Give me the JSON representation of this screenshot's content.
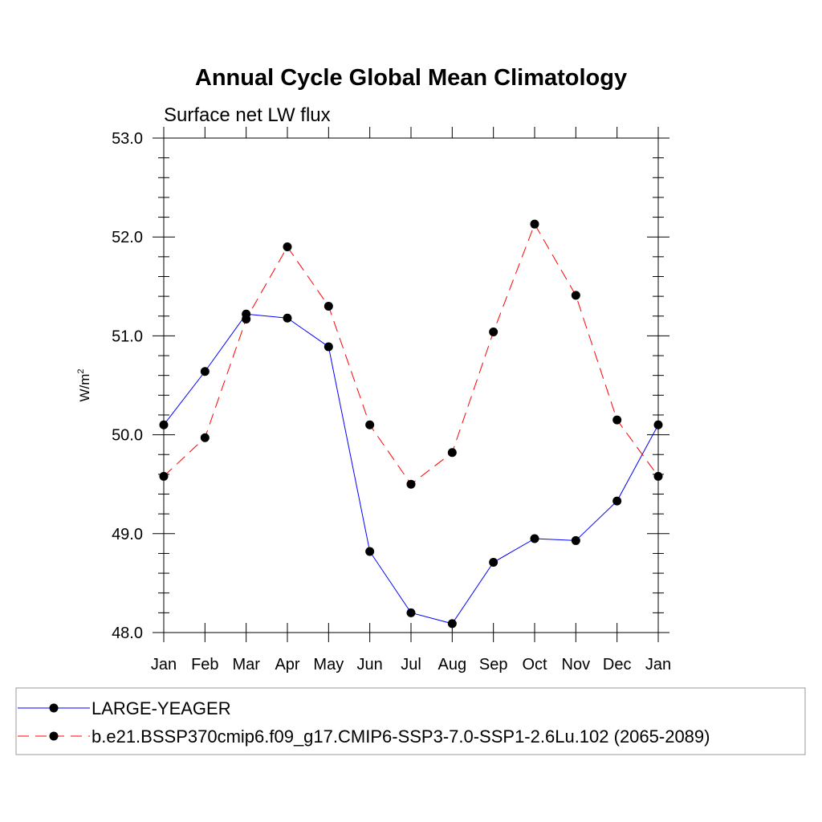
{
  "chart_data": {
    "type": "line",
    "title": "Annual Cycle Global Mean Climatology",
    "subtitle": "Surface net LW flux",
    "ylabel": "W/m",
    "ylabel_superscript": "2",
    "categories": [
      "Jan",
      "Feb",
      "Mar",
      "Apr",
      "May",
      "Jun",
      "Jul",
      "Aug",
      "Sep",
      "Oct",
      "Nov",
      "Dec",
      "Jan"
    ],
    "ylim": [
      48.0,
      53.0
    ],
    "yticks": [
      "48.0",
      "49.0",
      "50.0",
      "51.0",
      "52.0",
      "53.0"
    ],
    "grid": false,
    "legend_placement": "bottom",
    "series": [
      {
        "name": "LARGE-YEAGER",
        "color": "#0000ff",
        "style": "solid",
        "values": [
          50.1,
          50.64,
          51.22,
          51.18,
          50.89,
          48.82,
          48.2,
          48.09,
          48.71,
          48.95,
          48.93,
          49.33,
          50.1
        ]
      },
      {
        "name": "b.e21.BSSP370cmip6.f09_g17.CMIP6-SSP3-7.0-SSP1-2.6Lu.102 (2065-2089)",
        "color": "#ff0000",
        "style": "dashed",
        "values": [
          49.58,
          49.97,
          51.17,
          51.9,
          51.3,
          50.1,
          49.5,
          49.82,
          51.04,
          52.13,
          51.41,
          50.15,
          49.58
        ]
      }
    ]
  }
}
